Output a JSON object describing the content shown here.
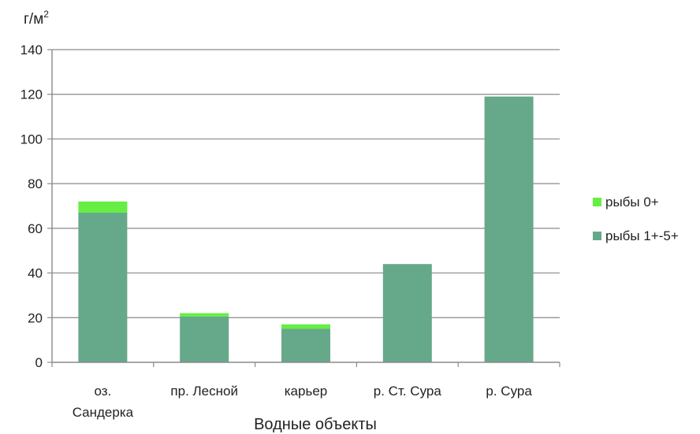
{
  "chart_data": {
    "type": "bar",
    "stacked": true,
    "categories": [
      [
        "оз.",
        "Сандерка"
      ],
      [
        "пр. Лесной"
      ],
      [
        "карьер"
      ],
      [
        "р. Ст. Сура"
      ],
      [
        "р. Сура"
      ]
    ],
    "series": [
      {
        "name": "рыбы 1+-5+",
        "color": "#66a88a",
        "values": [
          67,
          20.5,
          15,
          44,
          119
        ]
      },
      {
        "name": "рыбы 0+",
        "color": "#66ee44",
        "values": [
          5,
          1.5,
          2,
          0,
          0
        ]
      }
    ],
    "legend_order": [
      1,
      0
    ],
    "legend_position": "right",
    "xlabel": "Водные объекты",
    "ylabel": "г/м",
    "ylabel_superscript": "2",
    "ylim": [
      0,
      140
    ],
    "yticks": [
      0,
      20,
      40,
      60,
      80,
      100,
      120,
      140
    ],
    "grid": true
  }
}
